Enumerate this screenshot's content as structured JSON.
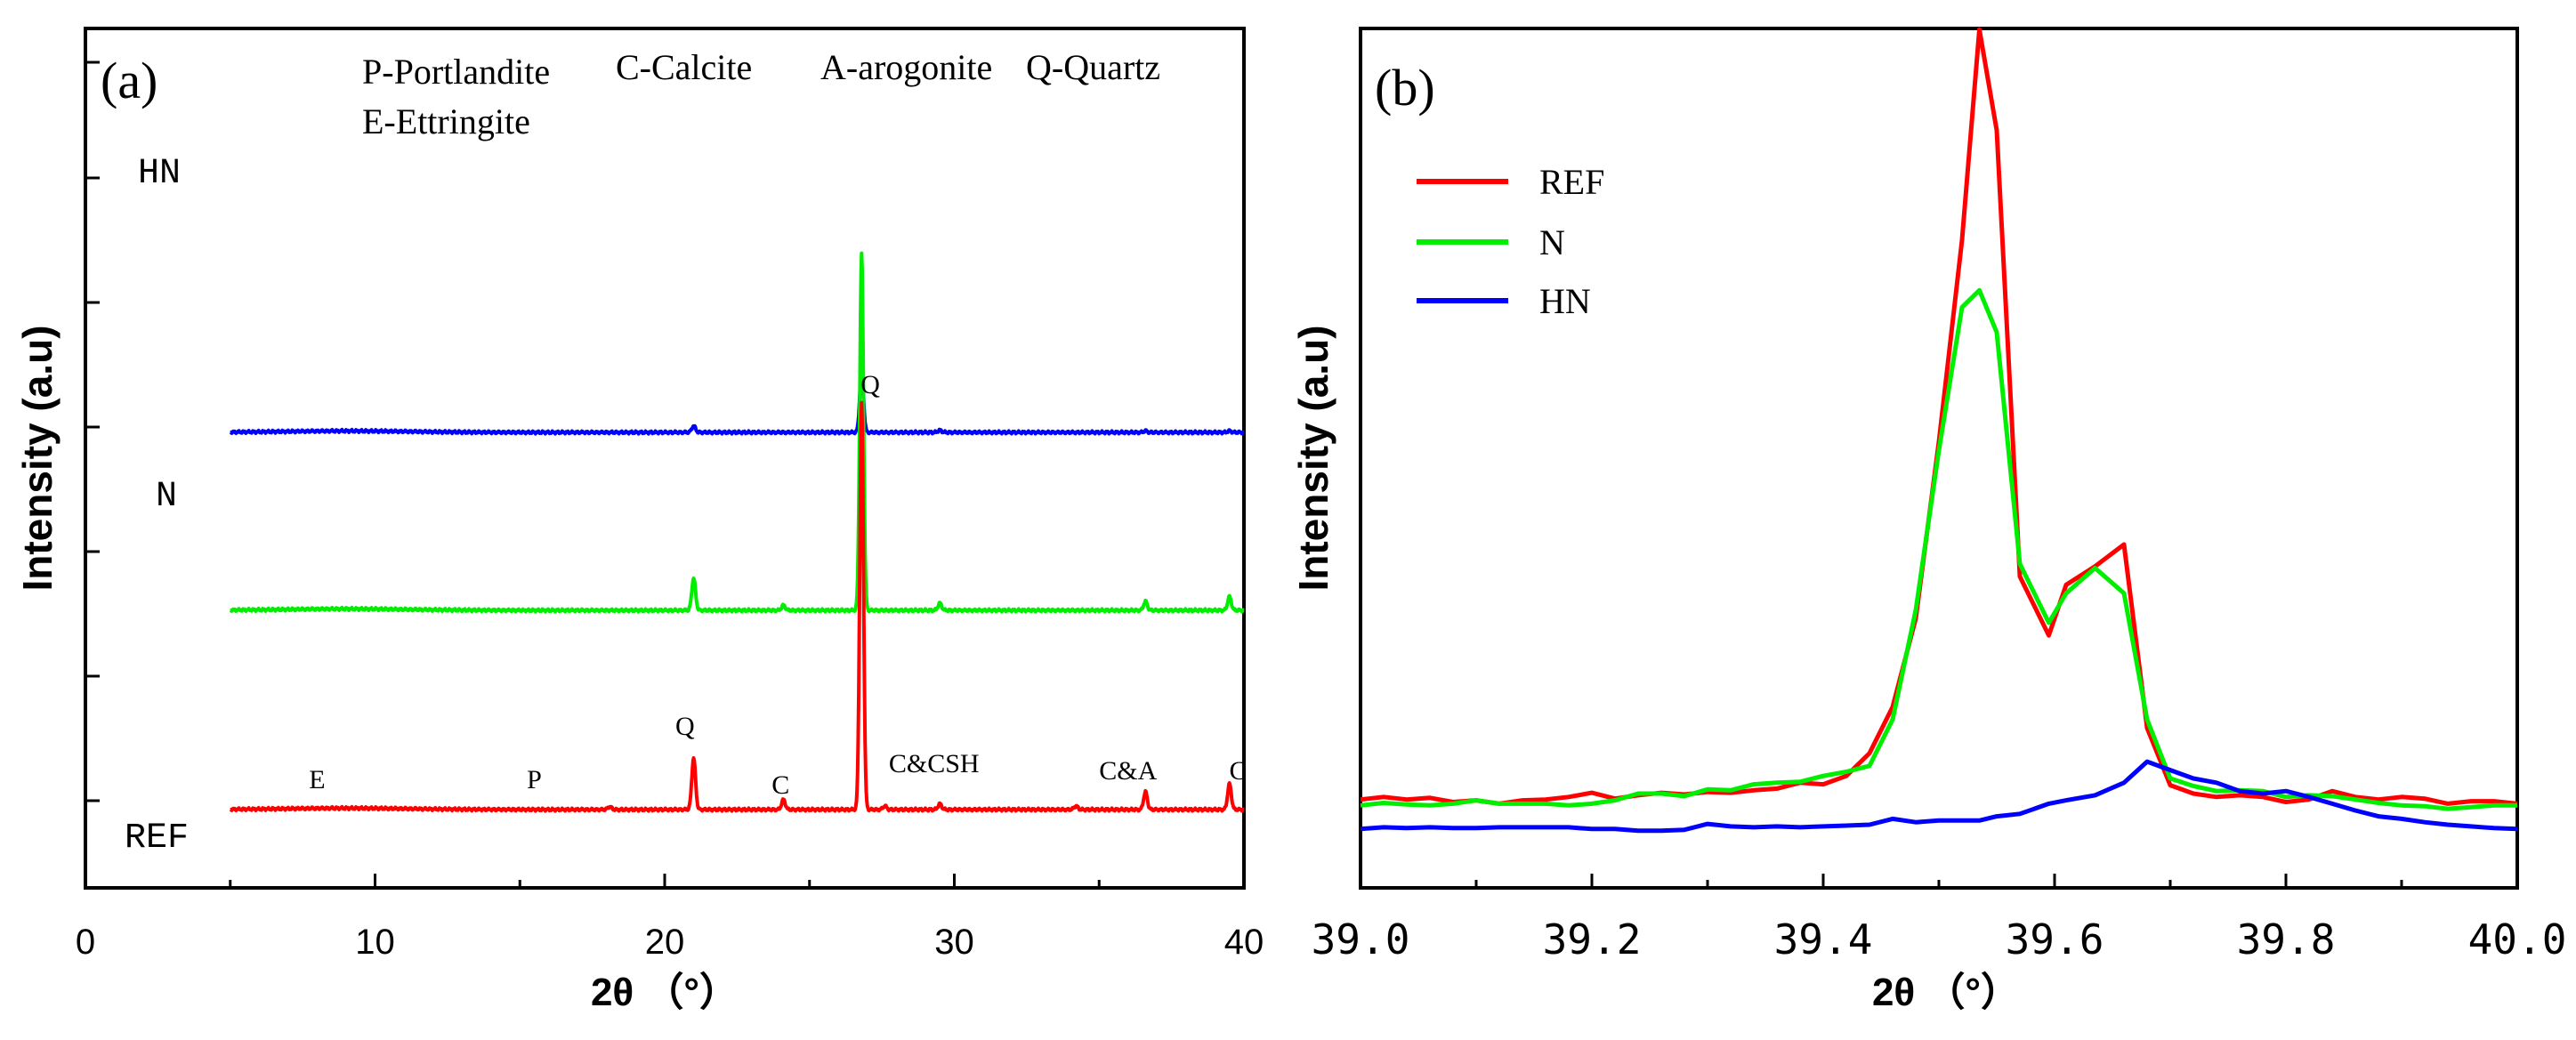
{
  "colors": {
    "REF": "#ff0000",
    "N": "#00ee00",
    "HN": "#0000ff"
  },
  "chart_data": [
    {
      "panel": "(a)",
      "type": "line",
      "xlabel": "2θ （°）",
      "ylabel": "Intensity (a.u)",
      "xlim": [
        0,
        40
      ],
      "xticks": [
        0,
        10,
        20,
        30,
        40
      ],
      "phase_legend": [
        "P-Portlandite",
        "C-Calcite",
        "A-arogonite",
        "Q-Quartz",
        "E-Ettringite"
      ],
      "series": [
        {
          "name": "HN",
          "label": "HN",
          "baseline": 1280,
          "peaks": [
            [
              21.0,
              18
            ],
            [
              26.8,
              175
            ],
            [
              29.5,
              6
            ],
            [
              36.6,
              4
            ],
            [
              39.5,
              4
            ]
          ]
        },
        {
          "name": "N",
          "label": "N",
          "baseline": 780,
          "peaks": [
            [
              21.0,
              90
            ],
            [
              24.1,
              14
            ],
            [
              26.8,
              1000
            ],
            [
              29.5,
              20
            ],
            [
              36.6,
              25
            ],
            [
              39.5,
              38
            ]
          ]
        },
        {
          "name": "REF",
          "label": "REF",
          "baseline": 220,
          "peaks": [
            [
              18.1,
              8
            ],
            [
              21.0,
              145
            ],
            [
              24.1,
              28
            ],
            [
              26.8,
              1140
            ],
            [
              27.6,
              10
            ],
            [
              29.5,
              16
            ],
            [
              34.2,
              10
            ],
            [
              36.6,
              50
            ],
            [
              39.5,
              72
            ]
          ]
        }
      ],
      "peak_labels": [
        {
          "text": "E",
          "x": 8.0,
          "y": 280
        },
        {
          "text": "P",
          "x": 15.5,
          "y": 280
        },
        {
          "text": "Q",
          "x": 20.7,
          "y": 430
        },
        {
          "text": "C",
          "x": 24.0,
          "y": 265
        },
        {
          "text": "Q",
          "x": 27.1,
          "y": 1390
        },
        {
          "text": "C&CSH",
          "x": 29.3,
          "y": 325
        },
        {
          "text": "C&A",
          "x": 36.0,
          "y": 305
        },
        {
          "text": "C",
          "x": 39.8,
          "y": 305
        }
      ]
    },
    {
      "panel": "(b)",
      "type": "line",
      "xlabel": "2θ （°）",
      "ylabel": "Intensity (a.u)",
      "xlim": [
        39.0,
        40.0
      ],
      "ylim": [
        0,
        1000
      ],
      "xticks": [
        "39.0",
        "39.2",
        "39.4",
        "39.6",
        "39.8",
        "40.0"
      ],
      "x": [
        39.0,
        39.02,
        39.04,
        39.06,
        39.08,
        39.1,
        39.12,
        39.14,
        39.16,
        39.18,
        39.2,
        39.22,
        39.24,
        39.26,
        39.28,
        39.3,
        39.32,
        39.34,
        39.36,
        39.38,
        39.4,
        39.42,
        39.44,
        39.46,
        39.48,
        39.5,
        39.52,
        39.535,
        39.55,
        39.57,
        39.595,
        39.61,
        39.635,
        39.66,
        39.68,
        39.7,
        39.72,
        39.74,
        39.76,
        39.78,
        39.8,
        39.82,
        39.84,
        39.86,
        39.88,
        39.9,
        39.92,
        39.94,
        39.96,
        39.98,
        40.0
      ],
      "series": [
        {
          "name": "REF",
          "values": [
            105,
            108,
            105,
            107,
            102,
            104,
            100,
            104,
            105,
            108,
            113,
            106,
            110,
            113,
            111,
            114,
            113,
            116,
            118,
            125,
            123,
            133,
            160,
            215,
            320,
            530,
            770,
            1020,
            900,
            370,
            300,
            360,
            382,
            408,
            190,
            122,
            112,
            108,
            110,
            108,
            102,
            105,
            115,
            108,
            105,
            108,
            106,
            100,
            103,
            103,
            100
          ]
        },
        {
          "name": "N",
          "values": [
            98,
            101,
            99,
            98,
            100,
            104,
            100,
            100,
            100,
            98,
            100,
            104,
            112,
            112,
            109,
            117,
            116,
            123,
            125,
            126,
            133,
            138,
            145,
            200,
            330,
            520,
            690,
            710,
            660,
            385,
            315,
            350,
            380,
            350,
            200,
            130,
            121,
            115,
            116,
            115,
            108,
            110,
            109,
            105,
            101,
            98,
            97,
            94,
            96,
            98,
            98
          ]
        },
        {
          "name": "HN",
          "values": [
            70,
            72,
            71,
            72,
            71,
            71,
            72,
            72,
            72,
            72,
            70,
            70,
            68,
            68,
            69,
            76,
            73,
            72,
            73,
            72,
            73,
            74,
            75,
            82,
            78,
            80,
            80,
            80,
            85,
            88,
            100,
            104,
            110,
            125,
            150,
            140,
            130,
            125,
            115,
            112,
            115,
            108,
            100,
            92,
            85,
            82,
            78,
            75,
            73,
            71,
            70
          ]
        }
      ],
      "legend": [
        "REF",
        "N",
        "HN"
      ]
    }
  ]
}
